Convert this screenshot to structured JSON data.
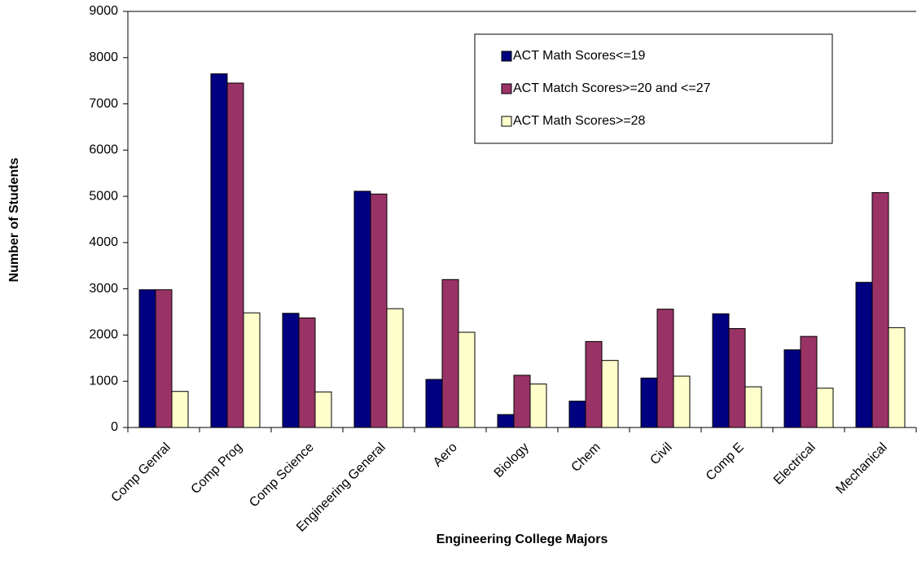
{
  "chart_data": {
    "type": "bar",
    "x_label": "Engineering College Majors",
    "y_label": "Number of Students",
    "categories": [
      "Comp Genral",
      "Comp Prog",
      "Comp Science",
      "Engineering General",
      "Aero",
      "Biology",
      "Chem",
      "Civil",
      "Comp E",
      "Electrical",
      "Mechanical"
    ],
    "series": [
      {
        "name": "ACT Math Scores<=19",
        "color": "#000080",
        "values": [
          2980,
          7650,
          2470,
          5110,
          1040,
          280,
          570,
          1070,
          2460,
          1680,
          3140
        ]
      },
      {
        "name": "ACT Match Scores>=20 and <=27",
        "color": "#993366",
        "values": [
          2980,
          7450,
          2370,
          5050,
          3200,
          1130,
          1860,
          2560,
          2140,
          1970,
          5080
        ]
      },
      {
        "name": "ACT Math Scores>=28",
        "color": "#ffffcc",
        "values": [
          780,
          2480,
          770,
          2570,
          2060,
          940,
          1450,
          1110,
          880,
          850,
          2160
        ]
      }
    ],
    "ylim": [
      0,
      9000
    ],
    "yticks": [
      0,
      1000,
      2000,
      3000,
      4000,
      5000,
      6000,
      7000,
      8000,
      9000
    ],
    "grid": false,
    "legend": "upper-right"
  }
}
